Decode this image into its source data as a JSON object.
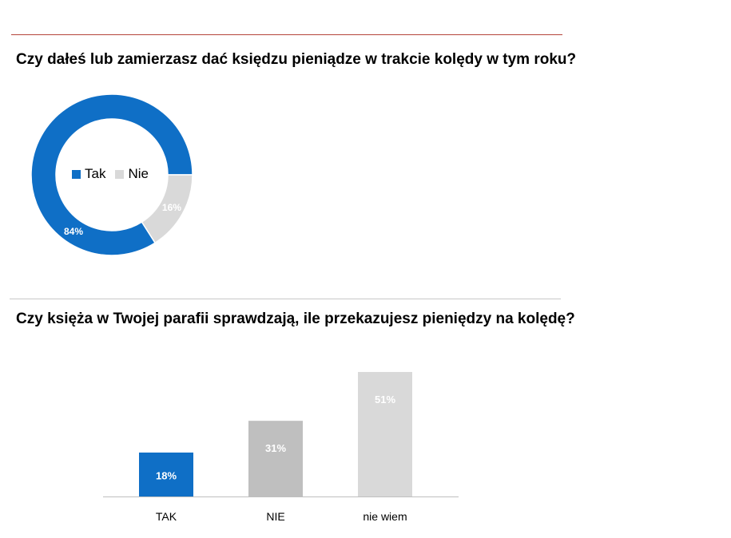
{
  "colors": {
    "blue": "#0f6fc6",
    "mid_gray": "#bfbfbf",
    "light_gray": "#d9d9d9",
    "title_rule": "#b5443a"
  },
  "chart_data": [
    {
      "type": "pie",
      "variant": "donut",
      "title": "Czy dałeś lub zamierzasz dać księdzu pieniądze w trakcie kolędy w tym roku?",
      "legend_position": "center",
      "categories": [
        "Tak",
        "Nie"
      ],
      "values": [
        84,
        16
      ],
      "value_labels": [
        "84%",
        "16%"
      ],
      "colors": [
        "#0f6fc6",
        "#d9d9d9"
      ]
    },
    {
      "type": "bar",
      "title": "Czy księża w Twojej parafii sprawdzają, ile przekazujesz pieniędzy na kolędę?",
      "categories": [
        "TAK",
        "NIE",
        "nie wiem"
      ],
      "values": [
        18,
        31,
        51
      ],
      "value_labels": [
        "18%",
        "31%",
        "51%"
      ],
      "colors": [
        "#0f6fc6",
        "#bfbfbf",
        "#d9d9d9"
      ],
      "ylim": [
        0,
        51
      ],
      "grid": false
    }
  ]
}
